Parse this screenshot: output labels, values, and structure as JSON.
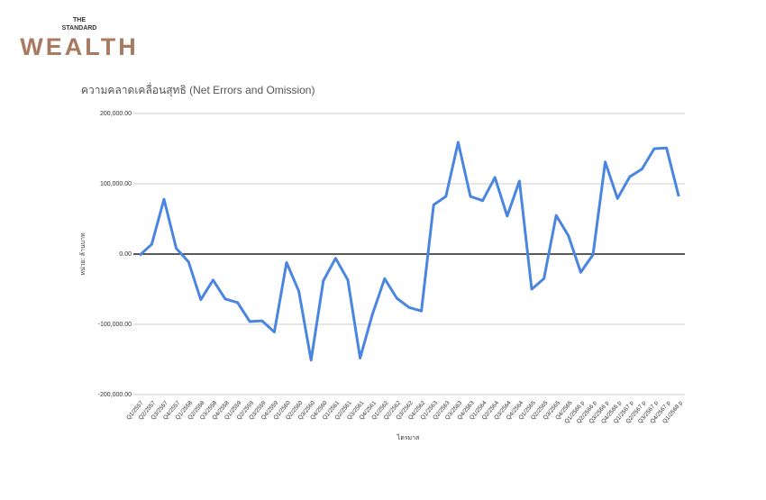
{
  "brand": {
    "line1": "THE",
    "line2": "STANDARD",
    "name": "WEALTH"
  },
  "chart_data": {
    "type": "line",
    "title": "ความคลาดเคลื่อนสุทธิ (Net Errors and Omission)",
    "y_label": "หน่วย: ล้านบาท",
    "x_label": "ไตรมาส",
    "categories": [
      "Q1/2557",
      "Q2/2557",
      "Q3/2557",
      "Q4/2557",
      "Q1/2558",
      "Q2/2558",
      "Q3/2558",
      "Q4/2558",
      "Q1/2559",
      "Q2/2559",
      "Q3/2559",
      "Q4/2559",
      "Q1/2560",
      "Q2/2560",
      "Q3/2560",
      "Q4/2560",
      "Q1/2561",
      "Q2/2561",
      "Q3/2561",
      "Q4/2561",
      "Q1/2562",
      "Q2/2562",
      "Q3/2562",
      "Q4/2562",
      "Q1/2563",
      "Q2/2563",
      "Q3/2563",
      "Q4/2563",
      "Q1/2564",
      "Q2/2564",
      "Q3/2564",
      "Q4/2564",
      "Q1/2565",
      "Q2/2565",
      "Q3/2565",
      "Q4/2565",
      "Q1/2566 p",
      "Q2/2566 p",
      "Q3/2566 p",
      "Q4/2566 p",
      "Q1/2567 p",
      "Q2/2567 p",
      "Q3/2567 p",
      "Q4/2567 p",
      "Q1/2568 p"
    ],
    "series": [
      {
        "name": "ความคลาดเคลื่อนสุทธิ",
        "color": "#4a86e0",
        "values": [
          -2000,
          14000,
          78000,
          8000,
          -11000,
          -65000,
          -37000,
          -64000,
          -69000,
          -96000,
          -95000,
          -111000,
          -12000,
          -53000,
          -151000,
          -38000,
          -6000,
          -37000,
          -148000,
          -86000,
          -35000,
          -63000,
          -76000,
          -81000,
          70000,
          82000,
          159000,
          82000,
          76000,
          109000,
          54000,
          104000,
          -50000,
          -35000,
          55000,
          26000,
          -26000,
          -1000,
          131000,
          79000,
          110000,
          121000,
          150000,
          151000,
          82000
        ]
      }
    ],
    "ylim": [
      -200000,
      200000
    ],
    "yticks": [
      {
        "value": -200000,
        "label": "-200,000.00"
      },
      {
        "value": -100000,
        "label": "-100,000.00"
      },
      {
        "value": 0,
        "label": "0.00"
      },
      {
        "value": 100000,
        "label": "100,000.00"
      },
      {
        "value": 200000,
        "label": "200,000.00"
      }
    ],
    "grid": true
  }
}
